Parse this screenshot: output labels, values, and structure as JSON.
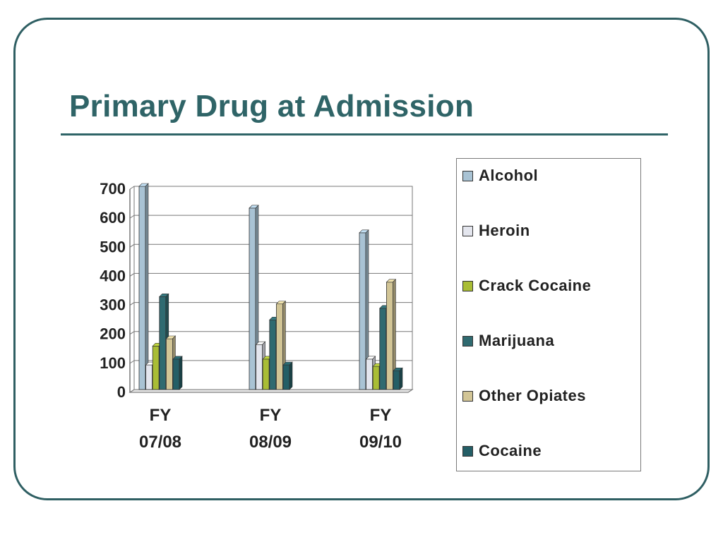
{
  "slide": {
    "title": "Primary Drug at Admission"
  },
  "colors": {
    "frame": "#2f5f63",
    "title": "#2f6467",
    "series": [
      "#a9c3d4",
      "#e4e6ee",
      "#a9bd35",
      "#2f6a70",
      "#d2c596",
      "#245e66"
    ]
  },
  "chart_data": {
    "type": "bar",
    "categories": [
      [
        "FY",
        "07/08"
      ],
      [
        "FY",
        "08/09"
      ],
      [
        "FY",
        "09/10"
      ]
    ],
    "series": [
      {
        "name": "Alcohol",
        "values": [
          700,
          625,
          540
        ]
      },
      {
        "name": "Heroin",
        "values": [
          85,
          155,
          105
        ]
      },
      {
        "name": "Crack Cocaine",
        "values": [
          150,
          105,
          80
        ]
      },
      {
        "name": "Marijuana",
        "values": [
          320,
          240,
          280
        ]
      },
      {
        "name": "Other Opiates",
        "values": [
          175,
          295,
          370
        ]
      },
      {
        "name": "Cocaine",
        "values": [
          105,
          85,
          65
        ]
      }
    ],
    "yticks": [
      "0",
      "100",
      "200",
      "300",
      "400",
      "500",
      "600",
      "700"
    ],
    "ylim": [
      0,
      700
    ],
    "grid": true,
    "legend_position": "right"
  }
}
